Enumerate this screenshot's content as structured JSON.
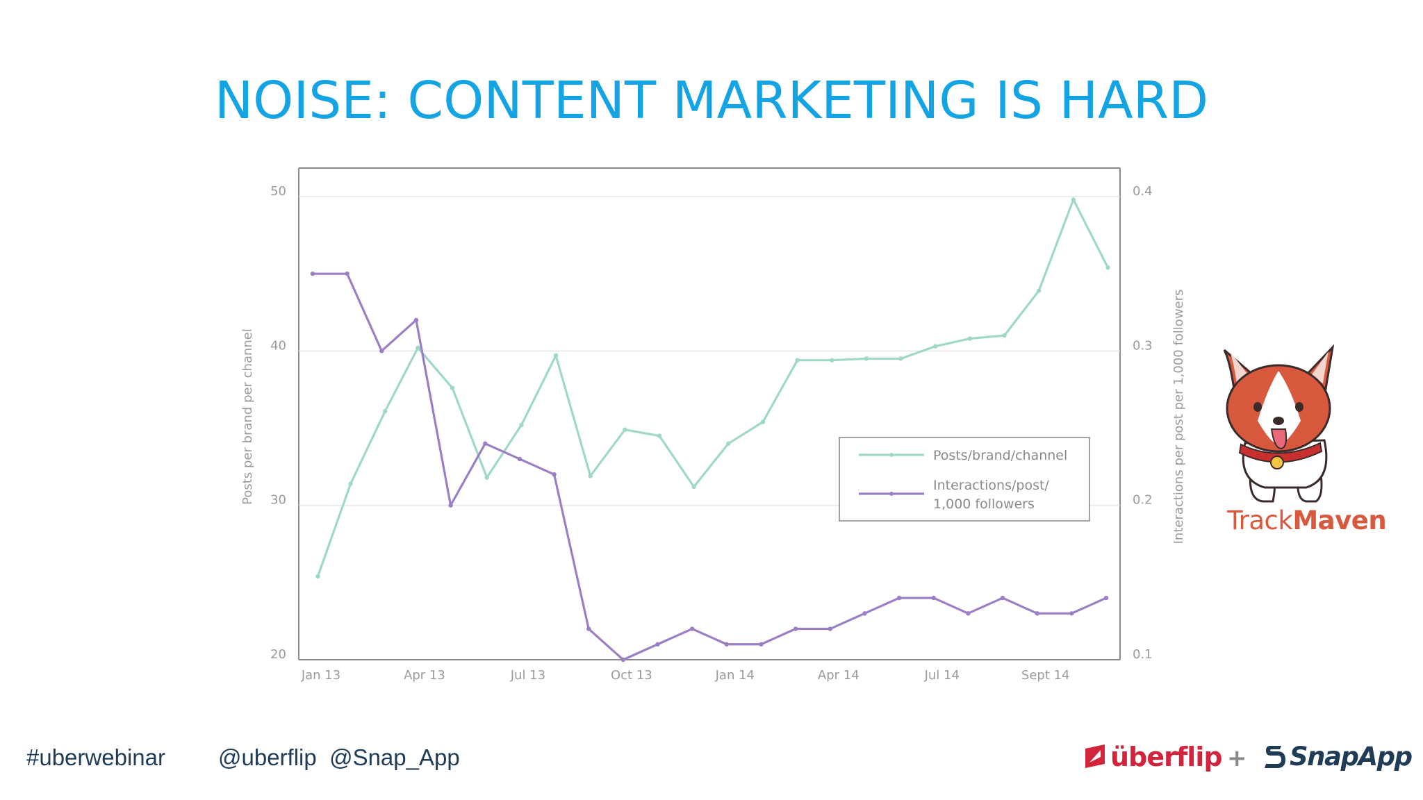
{
  "slide": {
    "title": "NOISE: CONTENT MARKETING IS HARD",
    "footer_hashtag": "#uberwebinar",
    "footer_handles": "@uberflip  @Snap_App",
    "trackmaven_name_part1": "Track",
    "trackmaven_name_part2": "Maven",
    "uberflip_name": "überflip",
    "plus": "+",
    "snapapp_name": "SnapApp",
    "title_color": "#14a3e3"
  },
  "chart_data": {
    "type": "line",
    "x": [
      "Jan 13",
      "Feb 13",
      "Mar 13",
      "Apr 13",
      "May 13",
      "Jun 13",
      "Jul 13",
      "Aug 13",
      "Sep 13",
      "Oct 13",
      "Nov 13",
      "Dec 13",
      "Jan 14",
      "Feb 14",
      "Mar 14",
      "Apr 14",
      "May 14",
      "Jun 14",
      "Jul 14",
      "Aug 14",
      "Sep 14",
      "Oct 14",
      "Nov 14",
      "Dec 14"
    ],
    "x_tick_labels": [
      "Jan 13",
      "Apr 13",
      "Jul 13",
      "Oct 13",
      "Jan 14",
      "Apr 14",
      "Jul 14",
      "Sept 14"
    ],
    "x_tick_indices": [
      0,
      3,
      6,
      9,
      12,
      15,
      18,
      21
    ],
    "ylabel_left": "Posts per brand per channel",
    "ylabel_right": "Interactions per post per 1,000 followers",
    "ylim_left": [
      20,
      50
    ],
    "yticks_left": [
      20,
      30,
      40,
      50
    ],
    "ylim_right": [
      0.1,
      0.4
    ],
    "yticks_right": [
      0.1,
      0.2,
      0.3,
      0.4
    ],
    "grid": "horizontal",
    "legend_position": "right, lower-middle",
    "series": [
      {
        "name": "Posts/brand/channel",
        "axis": "left",
        "color": "#9fd8c8",
        "x_indices": [
          0.15,
          1.1,
          2.1,
          3.05,
          4.05,
          5.05,
          6.05,
          7.05,
          8.05,
          9.05,
          10.05,
          11.05,
          12.05,
          13.05,
          14.05,
          15.05,
          16.05,
          17.05,
          18.05,
          19.05,
          20.05,
          21.05,
          22.05,
          23.05
        ],
        "values": [
          25.4,
          31.4,
          36.1,
          40.2,
          37.6,
          31.8,
          35.2,
          39.7,
          31.9,
          34.9,
          34.5,
          31.2,
          34.0,
          35.4,
          39.4,
          39.4,
          39.5,
          39.5,
          40.3,
          40.8,
          41.0,
          43.9,
          49.8,
          45.4
        ]
      },
      {
        "name": "Interactions/post/\n1,000 followers",
        "legend_lines": [
          "Interactions/post/",
          "1,000 followers"
        ],
        "axis": "right",
        "color": "#9b7fc4",
        "x_indices": [
          0,
          1,
          2,
          3,
          4,
          5,
          6,
          7,
          8,
          9,
          10,
          11,
          12,
          13,
          14,
          15,
          16,
          17,
          18,
          19,
          20,
          21,
          22,
          23
        ],
        "values": [
          0.35,
          0.35,
          0.3,
          0.32,
          0.2,
          0.24,
          0.23,
          0.22,
          0.12,
          0.1,
          0.11,
          0.12,
          0.11,
          0.11,
          0.12,
          0.12,
          0.13,
          0.14,
          0.14,
          0.13,
          0.14,
          0.13,
          0.13,
          0.14
        ]
      }
    ]
  }
}
